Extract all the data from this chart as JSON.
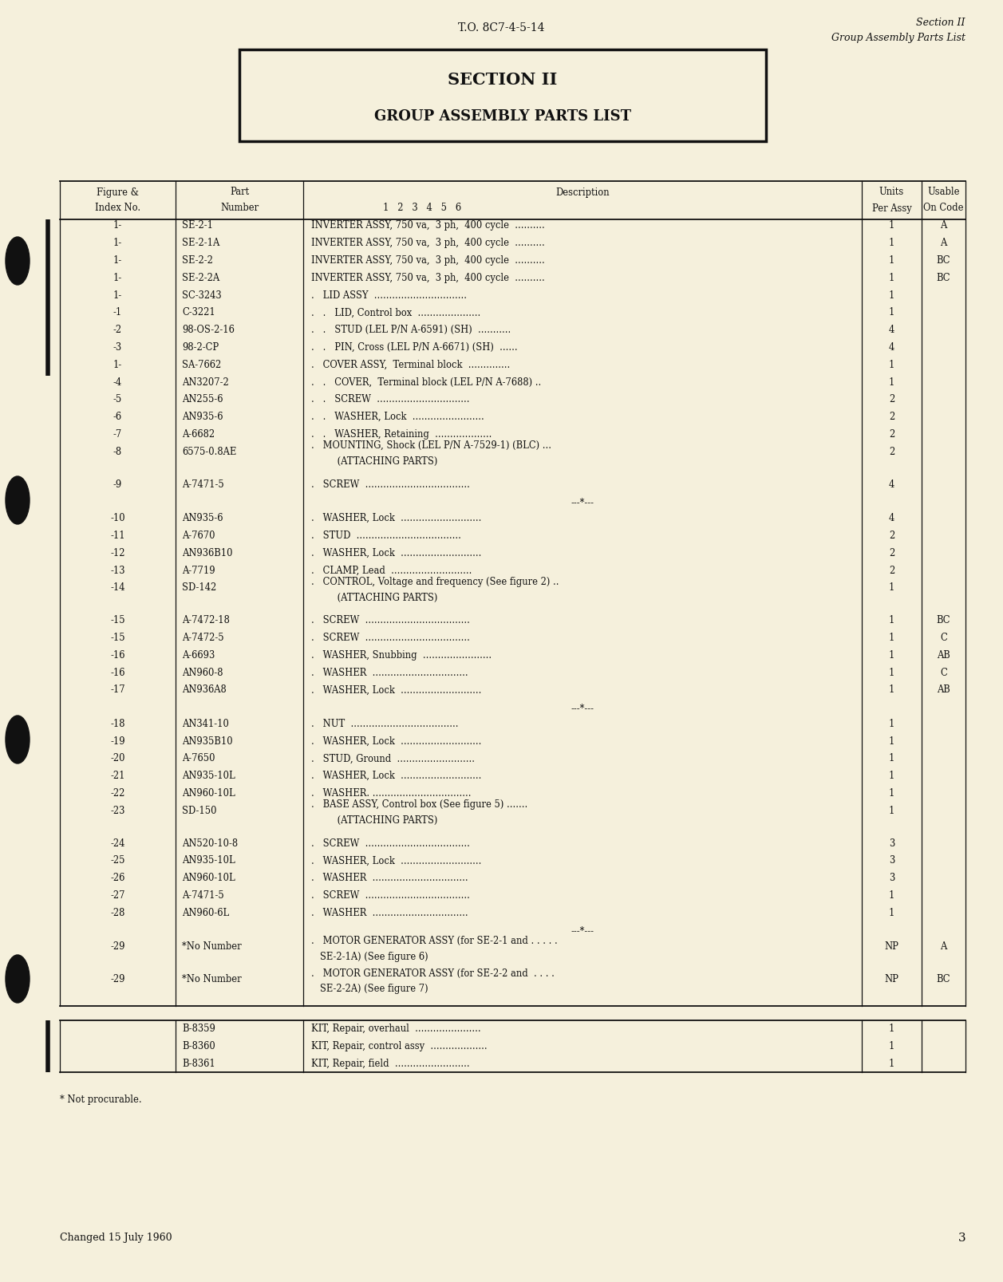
{
  "bg_color": "#f5f0dc",
  "page_header_left": "T.O. 8C7-4-5-14",
  "page_header_right_line1": "Section II",
  "page_header_right_line2": "Group Assembly Parts List",
  "section_title_line1": "SECTION II",
  "section_title_line2": "GROUP ASSEMBLY PARTS LIST",
  "footer_note": "* Not procurable.",
  "footer_date": "Changed 15 July 1960",
  "footer_page": "3",
  "rows": [
    {
      "fig": "1-",
      "part": "SE-2-1",
      "desc": "INVERTER ASSY, 750 va,  3 ph,  400 cycle  ..........",
      "units": "1",
      "code": "A",
      "multiline": false,
      "separator": false,
      "attaching": false
    },
    {
      "fig": "1-",
      "part": "SE-2-1A",
      "desc": "INVERTER ASSY, 750 va,  3 ph,  400 cycle  ..........",
      "units": "1",
      "code": "A",
      "multiline": false,
      "separator": false,
      "attaching": false
    },
    {
      "fig": "1-",
      "part": "SE-2-2",
      "desc": "INVERTER ASSY, 750 va,  3 ph,  400 cycle  ..........",
      "units": "1",
      "code": "BC",
      "multiline": false,
      "separator": false,
      "attaching": false
    },
    {
      "fig": "1-",
      "part": "SE-2-2A",
      "desc": "INVERTER ASSY, 750 va,  3 ph,  400 cycle  ..........",
      "units": "1",
      "code": "BC",
      "multiline": false,
      "separator": false,
      "attaching": false
    },
    {
      "fig": "1-",
      "part": "SC-3243",
      "desc": ".   LID ASSY  ...............................",
      "units": "1",
      "code": "",
      "multiline": false,
      "separator": false,
      "attaching": false
    },
    {
      "fig": "-1",
      "part": "C-3221",
      "desc": ".   .   LID, Control box  .....................",
      "units": "1",
      "code": "",
      "multiline": false,
      "separator": false,
      "attaching": false
    },
    {
      "fig": "-2",
      "part": "98-OS-2-16",
      "desc": ".   .   STUD (LEL P/N A-6591) (SH)  ...........",
      "units": "4",
      "code": "",
      "multiline": false,
      "separator": false,
      "attaching": false
    },
    {
      "fig": "-3",
      "part": "98-2-CP",
      "desc": ".   .   PIN, Cross (LEL P/N A-6671) (SH)  ......",
      "units": "4",
      "code": "",
      "multiline": false,
      "separator": false,
      "attaching": false
    },
    {
      "fig": "1-",
      "part": "SA-7662",
      "desc": ".   COVER ASSY,  Terminal block  ..............",
      "units": "1",
      "code": "",
      "multiline": false,
      "separator": false,
      "attaching": false
    },
    {
      "fig": "-4",
      "part": "AN3207-2",
      "desc": ".   .   COVER,  Terminal block (LEL P/N A-7688) ..",
      "units": "1",
      "code": "",
      "multiline": false,
      "separator": false,
      "attaching": false
    },
    {
      "fig": "-5",
      "part": "AN255-6",
      "desc": ".   .   SCREW  ...............................",
      "units": "2",
      "code": "",
      "multiline": false,
      "separator": false,
      "attaching": false
    },
    {
      "fig": "-6",
      "part": "AN935-6",
      "desc": ".   .   WASHER, Lock  ........................",
      "units": "2",
      "code": "",
      "multiline": false,
      "separator": false,
      "attaching": false
    },
    {
      "fig": "-7",
      "part": "A-6682",
      "desc": ".   .   WASHER, Retaining  ...................",
      "units": "2",
      "code": "",
      "multiline": false,
      "separator": false,
      "attaching": false
    },
    {
      "fig": "-8",
      "part": "6575-0.8AE",
      "desc": ".   MOUNTING, Shock (LEL P/N A-7529-1) (BLC) ...",
      "units": "2",
      "code": "",
      "multiline": true,
      "desc2": "         (ATTACHING PARTS)",
      "separator": false,
      "attaching": false
    },
    {
      "fig": "-9",
      "part": "A-7471-5",
      "desc": ".   SCREW  ...................................",
      "units": "4",
      "code": "",
      "multiline": false,
      "separator": false,
      "attaching": false
    },
    {
      "fig": "",
      "part": "",
      "desc": "---*---",
      "units": "",
      "code": "",
      "multiline": false,
      "separator": true,
      "attaching": false
    },
    {
      "fig": "-10",
      "part": "AN935-6",
      "desc": ".   WASHER, Lock  ...........................",
      "units": "4",
      "code": "",
      "multiline": false,
      "separator": false,
      "attaching": false
    },
    {
      "fig": "-11",
      "part": "A-7670",
      "desc": ".   STUD  ...................................",
      "units": "2",
      "code": "",
      "multiline": false,
      "separator": false,
      "attaching": false
    },
    {
      "fig": "-12",
      "part": "AN936B10",
      "desc": ".   WASHER, Lock  ...........................",
      "units": "2",
      "code": "",
      "multiline": false,
      "separator": false,
      "attaching": false
    },
    {
      "fig": "-13",
      "part": "A-7719",
      "desc": ".   CLAMP, Lead  ...........................",
      "units": "2",
      "code": "",
      "multiline": false,
      "separator": false,
      "attaching": false
    },
    {
      "fig": "-14",
      "part": "SD-142",
      "desc": ".   CONTROL, Voltage and frequency (See figure 2) ..",
      "units": "1",
      "code": "",
      "multiline": true,
      "desc2": "         (ATTACHING PARTS)",
      "separator": false,
      "attaching": false
    },
    {
      "fig": "-15",
      "part": "A-7472-18",
      "desc": ".   SCREW  ...................................",
      "units": "1",
      "code": "BC",
      "multiline": false,
      "separator": false,
      "attaching": false
    },
    {
      "fig": "-15",
      "part": "A-7472-5",
      "desc": ".   SCREW  ...................................",
      "units": "1",
      "code": "C",
      "multiline": false,
      "separator": false,
      "attaching": false
    },
    {
      "fig": "-16",
      "part": "A-6693",
      "desc": ".   WASHER, Snubbing  .......................",
      "units": "1",
      "code": "AB",
      "multiline": false,
      "separator": false,
      "attaching": false
    },
    {
      "fig": "-16",
      "part": "AN960-8",
      "desc": ".   WASHER  ................................",
      "units": "1",
      "code": "C",
      "multiline": false,
      "separator": false,
      "attaching": false
    },
    {
      "fig": "-17",
      "part": "AN936A8",
      "desc": ".   WASHER, Lock  ...........................",
      "units": "1",
      "code": "AB",
      "multiline": false,
      "separator": false,
      "attaching": false
    },
    {
      "fig": "",
      "part": "",
      "desc": "---*---",
      "units": "",
      "code": "",
      "multiline": false,
      "separator": true,
      "attaching": false
    },
    {
      "fig": "-18",
      "part": "AN341-10",
      "desc": ".   NUT  ....................................",
      "units": "1",
      "code": "",
      "multiline": false,
      "separator": false,
      "attaching": false
    },
    {
      "fig": "-19",
      "part": "AN935B10",
      "desc": ".   WASHER, Lock  ...........................",
      "units": "1",
      "code": "",
      "multiline": false,
      "separator": false,
      "attaching": false
    },
    {
      "fig": "-20",
      "part": "A-7650",
      "desc": ".   STUD, Ground  ..........................",
      "units": "1",
      "code": "",
      "multiline": false,
      "separator": false,
      "attaching": false
    },
    {
      "fig": "-21",
      "part": "AN935-10L",
      "desc": ".   WASHER, Lock  ...........................",
      "units": "1",
      "code": "",
      "multiline": false,
      "separator": false,
      "attaching": false
    },
    {
      "fig": "-22",
      "part": "AN960-10L",
      "desc": ".   WASHER. .................................",
      "units": "1",
      "code": "",
      "multiline": false,
      "separator": false,
      "attaching": false
    },
    {
      "fig": "-23",
      "part": "SD-150",
      "desc": ".   BASE ASSY, Control box (See figure 5) .......",
      "units": "1",
      "code": "",
      "multiline": true,
      "desc2": "         (ATTACHING PARTS)",
      "separator": false,
      "attaching": false
    },
    {
      "fig": "-24",
      "part": "AN520-10-8",
      "desc": ".   SCREW  ...................................",
      "units": "3",
      "code": "",
      "multiline": false,
      "separator": false,
      "attaching": false
    },
    {
      "fig": "-25",
      "part": "AN935-10L",
      "desc": ".   WASHER, Lock  ...........................",
      "units": "3",
      "code": "",
      "multiline": false,
      "separator": false,
      "attaching": false
    },
    {
      "fig": "-26",
      "part": "AN960-10L",
      "desc": ".   WASHER  ................................",
      "units": "3",
      "code": "",
      "multiline": false,
      "separator": false,
      "attaching": false
    },
    {
      "fig": "-27",
      "part": "A-7471-5",
      "desc": ".   SCREW  ...................................",
      "units": "1",
      "code": "",
      "multiline": false,
      "separator": false,
      "attaching": false
    },
    {
      "fig": "-28",
      "part": "AN960-6L",
      "desc": ".   WASHER  ................................",
      "units": "1",
      "code": "",
      "multiline": false,
      "separator": false,
      "attaching": false
    },
    {
      "fig": "",
      "part": "",
      "desc": "---*---",
      "units": "",
      "code": "",
      "multiline": false,
      "separator": true,
      "attaching": false
    },
    {
      "fig": "-29",
      "part": "*No Number",
      "desc": ".   MOTOR GENERATOR ASSY (for SE-2-1 and . . . . .",
      "units": "NP",
      "code": "A",
      "multiline": true,
      "desc2": "   SE-2-1A) (See figure 6)",
      "separator": false,
      "attaching": false
    },
    {
      "fig": "-29",
      "part": "*No Number",
      "desc": ".   MOTOR GENERATOR ASSY (for SE-2-2 and  . . . .",
      "units": "NP",
      "code": "BC",
      "multiline": true,
      "desc2": "   SE-2-2A) (See figure 7)",
      "separator": false,
      "attaching": false
    }
  ],
  "kit_rows": [
    {
      "part": "B-8359",
      "desc": "KIT, Repair, overhaul  ......................",
      "units": "1"
    },
    {
      "part": "B-8360",
      "desc": "KIT, Repair, control assy  ...................",
      "units": "1"
    },
    {
      "part": "B-8361",
      "desc": "KIT, Repair, field  .........................",
      "units": "1"
    }
  ]
}
